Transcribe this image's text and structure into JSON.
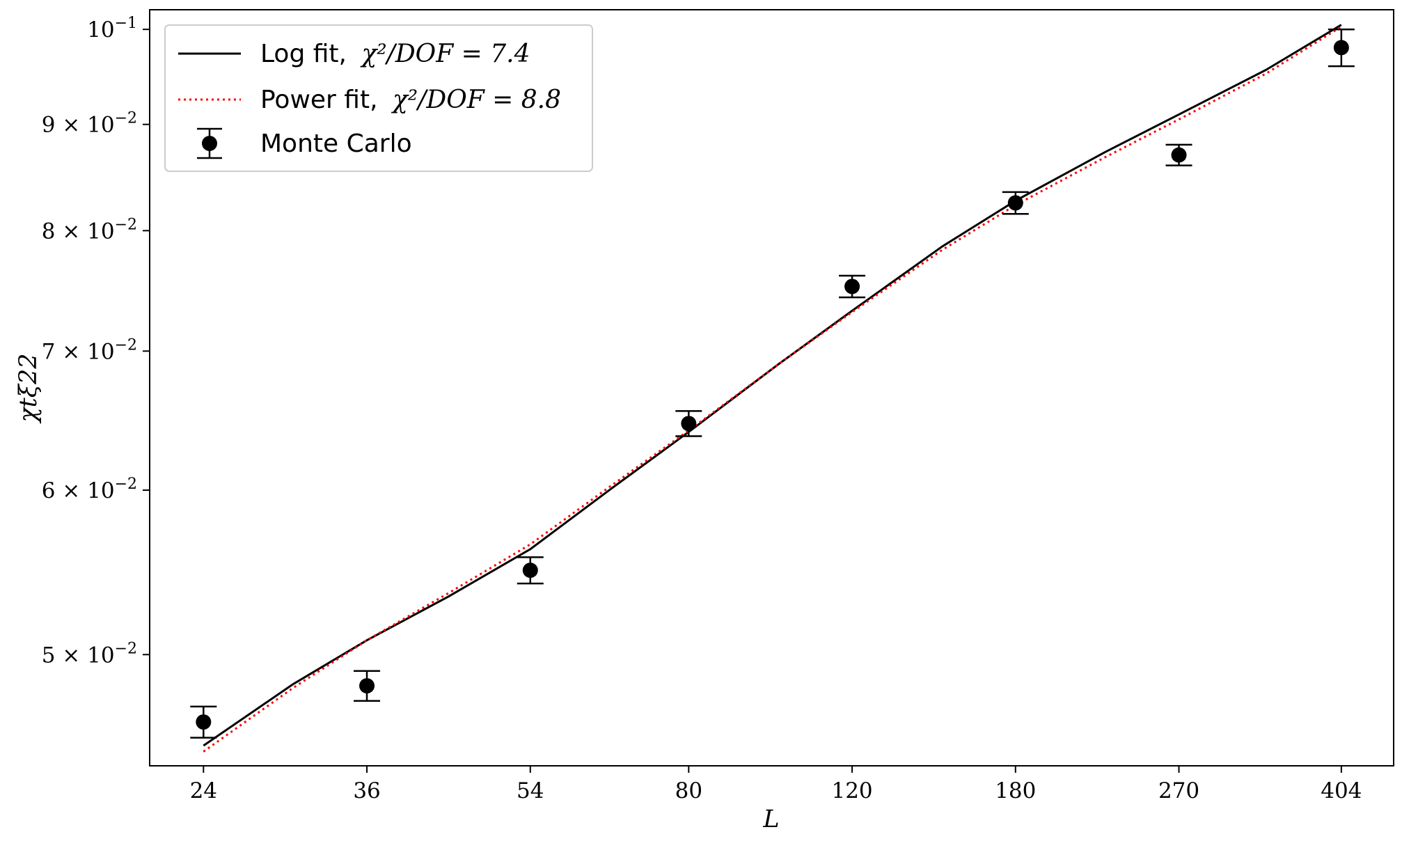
{
  "chart_data": {
    "type": "scatter",
    "xlabel": "L",
    "ylabel": "χtξ22",
    "x_scale": "log",
    "y_scale": "log",
    "xlim": [
      21,
      460
    ],
    "ylim": [
      0.0442,
      0.1022
    ],
    "x_ticks": [
      24,
      36,
      54,
      80,
      120,
      180,
      270,
      404
    ],
    "y_ticks": [
      {
        "value": 0.05,
        "label": "5 × 10",
        "exp": "−2"
      },
      {
        "value": 0.06,
        "label": "6 × 10",
        "exp": "−2"
      },
      {
        "value": 0.07,
        "label": "7 × 10",
        "exp": "−2"
      },
      {
        "value": 0.08,
        "label": "8 × 10",
        "exp": "−2"
      },
      {
        "value": 0.09,
        "label": "9 × 10",
        "exp": "−2"
      },
      {
        "value": 0.1,
        "label": "10",
        "exp": "−1"
      }
    ],
    "grid": false,
    "legend_position": "top-left",
    "series": [
      {
        "name": "Log fit, χ²/DOF = 7.4",
        "legend_prefix": "Log fit,",
        "legend_math": "χ²/DOF = 7.4",
        "kind": "line",
        "style": "solid",
        "color": "#000000",
        "x": [
          24,
          30,
          36,
          44,
          54,
          66,
          80,
          100,
          120,
          150,
          180,
          225,
          270,
          335,
          404
        ],
        "y": [
          0.0452,
          0.0484,
          0.0508,
          0.0533,
          0.0562,
          0.0601,
          0.064,
          0.069,
          0.0732,
          0.0786,
          0.0827,
          0.0873,
          0.091,
          0.0956,
          0.1005
        ]
      },
      {
        "name": "Power fit, χ²/DOF = 8.8",
        "legend_prefix": "Power fit,",
        "legend_math": "χ²/DOF = 8.8",
        "kind": "line",
        "style": "dotted",
        "color": "#ff0000",
        "x": [
          24,
          30,
          36,
          44,
          54,
          66,
          80,
          100,
          120,
          150,
          180,
          225,
          270,
          335,
          404
        ],
        "y": [
          0.0449,
          0.0482,
          0.0508,
          0.0535,
          0.0565,
          0.0603,
          0.0641,
          0.069,
          0.0731,
          0.0783,
          0.0823,
          0.0868,
          0.0905,
          0.0952,
          0.1003
        ]
      },
      {
        "name": "Monte Carlo",
        "kind": "errorbar",
        "color": "#000000",
        "x": [
          24,
          36,
          54,
          80,
          120,
          180,
          270,
          404
        ],
        "y": [
          0.0464,
          0.0483,
          0.0549,
          0.0646,
          0.0752,
          0.0825,
          0.087,
          0.098
        ],
        "yerr": [
          0.0008,
          0.0008,
          0.0008,
          0.0009,
          0.0009,
          0.001,
          0.001,
          0.002
        ]
      }
    ]
  }
}
